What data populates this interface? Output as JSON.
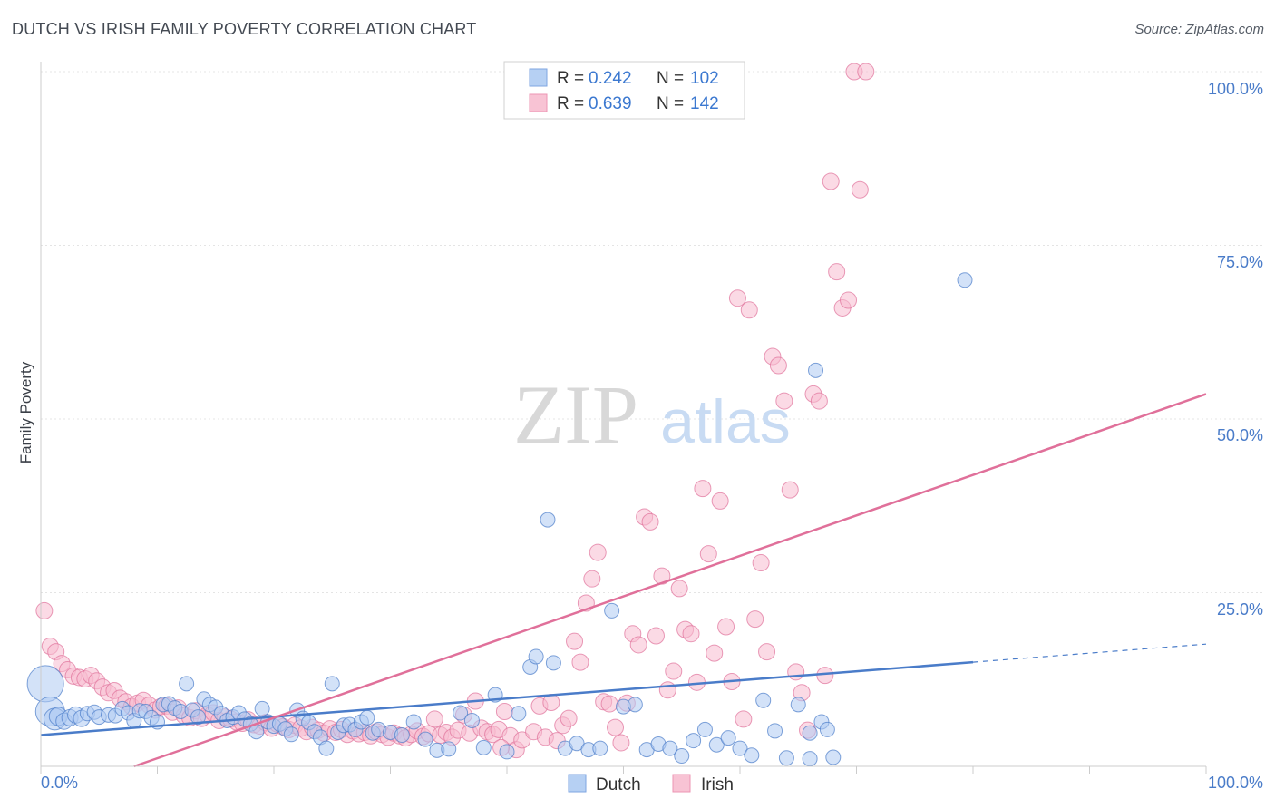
{
  "header": {
    "title": "DUTCH VS IRISH FAMILY POVERTY CORRELATION CHART",
    "source": "Source: ZipAtlas.com"
  },
  "watermark": {
    "zip": "ZIP",
    "atlas": "atlas"
  },
  "legend": {
    "items": [
      {
        "r_label": "R =",
        "r_value": "0.242",
        "n_label": "N =",
        "n_value": "102",
        "color": "#8fb4ee"
      },
      {
        "r_label": "R =",
        "r_value": "0.639",
        "n_label": "N =",
        "n_value": "142",
        "color": "#f5a3bf"
      }
    ]
  },
  "bottom_legend": {
    "dutch": "Dutch",
    "irish": "Irish"
  },
  "chart_data": {
    "type": "scatter",
    "title": "DUTCH VS IRISH FAMILY POVERTY CORRELATION CHART",
    "xlabel": "",
    "ylabel": "Family Poverty",
    "xlim": [
      0,
      100
    ],
    "ylim": [
      0,
      100
    ],
    "x_tick_labels": [
      "0.0%",
      "100.0%"
    ],
    "y_tick_labels": [
      "100.0%",
      "75.0%",
      "50.0%",
      "25.0%"
    ],
    "y_ticks": [
      100,
      75,
      50,
      25
    ],
    "grid": true,
    "colors": {
      "dutch": "#4a7cc9",
      "irish": "#e0709a",
      "dutch_fill": "#aecaf2",
      "irish_fill": "#f7bcd0"
    },
    "series": [
      {
        "name": "Dutch",
        "r": 0.242,
        "n": 102,
        "trend": {
          "x0": 0,
          "y0": 4.5,
          "x1": 80,
          "y1": 15.0,
          "dashed_to": 100,
          "dashed_y": 17.6
        },
        "points": [
          [
            0.4,
            11.9,
            20
          ],
          [
            0.8,
            7.9,
            16
          ],
          [
            1.2,
            6.8,
            12
          ],
          [
            1.5,
            7.2,
            10
          ],
          [
            2.0,
            6.5,
            9
          ],
          [
            2.5,
            7.0,
            9
          ],
          [
            3.0,
            7.4,
            9
          ],
          [
            3.5,
            6.9,
            9
          ],
          [
            4.0,
            7.6,
            8
          ],
          [
            4.6,
            7.8,
            8
          ],
          [
            5.0,
            7.1,
            8
          ],
          [
            5.8,
            7.4,
            8
          ],
          [
            6.4,
            7.3,
            8
          ],
          [
            7.0,
            8.3,
            8
          ],
          [
            7.5,
            7.7,
            8
          ],
          [
            8.0,
            6.6,
            8
          ],
          [
            8.5,
            8.0,
            8
          ],
          [
            9.0,
            7.9,
            8
          ],
          [
            9.5,
            7.0,
            8
          ],
          [
            10.0,
            6.4,
            8
          ],
          [
            10.5,
            8.9,
            8
          ],
          [
            11.0,
            9.0,
            8
          ],
          [
            11.5,
            8.4,
            8
          ],
          [
            12.0,
            7.9,
            8
          ],
          [
            12.5,
            11.9,
            8
          ],
          [
            13.0,
            8.1,
            8
          ],
          [
            13.5,
            7.1,
            8
          ],
          [
            14.0,
            9.7,
            8
          ],
          [
            14.5,
            8.9,
            8
          ],
          [
            15.0,
            8.5,
            8
          ],
          [
            15.5,
            7.6,
            8
          ],
          [
            16.0,
            6.6,
            8
          ],
          [
            16.5,
            7.1,
            8
          ],
          [
            17.0,
            7.7,
            8
          ],
          [
            17.5,
            6.8,
            8
          ],
          [
            18.0,
            6.1,
            8
          ],
          [
            18.5,
            5.0,
            8
          ],
          [
            19.0,
            8.3,
            8
          ],
          [
            19.5,
            6.4,
            8
          ],
          [
            20.0,
            5.8,
            8
          ],
          [
            20.5,
            6.1,
            8
          ],
          [
            21.0,
            5.4,
            8
          ],
          [
            21.5,
            4.6,
            8
          ],
          [
            22.0,
            8.1,
            8
          ],
          [
            22.5,
            6.9,
            8
          ],
          [
            23.0,
            6.3,
            8
          ],
          [
            23.5,
            5.0,
            8
          ],
          [
            24.0,
            4.2,
            8
          ],
          [
            24.5,
            2.6,
            8
          ],
          [
            25.0,
            11.9,
            8
          ],
          [
            25.5,
            4.9,
            8
          ],
          [
            26.0,
            5.9,
            8
          ],
          [
            26.5,
            6.0,
            8
          ],
          [
            27.0,
            5.3,
            8
          ],
          [
            27.5,
            6.4,
            8
          ],
          [
            28.0,
            7.0,
            8
          ],
          [
            28.5,
            4.8,
            8
          ],
          [
            29.0,
            5.3,
            8
          ],
          [
            30.0,
            4.9,
            8
          ],
          [
            31.0,
            4.5,
            8
          ],
          [
            32.0,
            6.4,
            8
          ],
          [
            33.0,
            3.9,
            8
          ],
          [
            34.0,
            2.3,
            8
          ],
          [
            35.0,
            2.5,
            8
          ],
          [
            36.0,
            7.7,
            8
          ],
          [
            37.0,
            6.6,
            8
          ],
          [
            38.0,
            2.7,
            8
          ],
          [
            39.0,
            10.3,
            8
          ],
          [
            40.0,
            2.1,
            8
          ],
          [
            41.0,
            7.6,
            8
          ],
          [
            42.0,
            14.3,
            8
          ],
          [
            42.5,
            15.8,
            8
          ],
          [
            43.5,
            35.5,
            8
          ],
          [
            44.0,
            14.9,
            8
          ],
          [
            45.0,
            2.6,
            8
          ],
          [
            46.0,
            3.3,
            8
          ],
          [
            47.0,
            2.4,
            8
          ],
          [
            48.0,
            2.6,
            8
          ],
          [
            49.0,
            22.4,
            8
          ],
          [
            50.0,
            8.6,
            8
          ],
          [
            51.0,
            8.9,
            8
          ],
          [
            52.0,
            2.4,
            8
          ],
          [
            53.0,
            3.2,
            8
          ],
          [
            54.0,
            2.6,
            8
          ],
          [
            55.0,
            1.5,
            8
          ],
          [
            56.0,
            3.7,
            8
          ],
          [
            57.0,
            5.3,
            8
          ],
          [
            58.0,
            3.1,
            8
          ],
          [
            59.0,
            4.1,
            8
          ],
          [
            60.0,
            2.6,
            8
          ],
          [
            61.0,
            1.6,
            8
          ],
          [
            62.0,
            9.5,
            8
          ],
          [
            63.0,
            5.1,
            8
          ],
          [
            64.0,
            1.2,
            8
          ],
          [
            65.0,
            8.9,
            8
          ],
          [
            66.0,
            1.1,
            8
          ],
          [
            66.5,
            57.0,
            8
          ],
          [
            67.0,
            6.4,
            8
          ],
          [
            67.5,
            5.3,
            8
          ],
          [
            68.0,
            1.3,
            8
          ],
          [
            79.3,
            70.0,
            8
          ],
          [
            66.0,
            4.8,
            8
          ]
        ]
      },
      {
        "name": "Irish",
        "r": 0.639,
        "n": 142,
        "trend": {
          "x0": 8,
          "y0": 0,
          "x1": 100,
          "y1": 53.6
        },
        "points": [
          [
            0.3,
            22.4,
            9
          ],
          [
            0.8,
            17.3,
            9
          ],
          [
            1.3,
            16.5,
            9
          ],
          [
            1.8,
            14.8,
            9
          ],
          [
            2.3,
            13.9,
            9
          ],
          [
            2.8,
            13.0,
            9
          ],
          [
            3.3,
            12.8,
            9
          ],
          [
            3.8,
            12.6,
            9
          ],
          [
            4.3,
            13.1,
            9
          ],
          [
            4.8,
            12.3,
            9
          ],
          [
            5.3,
            11.4,
            9
          ],
          [
            5.8,
            10.6,
            9
          ],
          [
            6.3,
            10.9,
            9
          ],
          [
            6.8,
            9.8,
            9
          ],
          [
            7.3,
            9.3,
            9
          ],
          [
            7.8,
            8.6,
            9
          ],
          [
            8.3,
            9.1,
            9
          ],
          [
            8.8,
            9.5,
            9
          ],
          [
            9.3,
            8.8,
            9
          ],
          [
            9.8,
            8.1,
            9
          ],
          [
            10.3,
            8.6,
            9
          ],
          [
            10.8,
            8.7,
            9
          ],
          [
            11.3,
            7.8,
            9
          ],
          [
            11.8,
            8.4,
            9
          ],
          [
            12.3,
            7.3,
            9
          ],
          [
            12.8,
            7.0,
            9
          ],
          [
            13.3,
            8.0,
            9
          ],
          [
            13.8,
            6.9,
            9
          ],
          [
            14.3,
            7.4,
            9
          ],
          [
            14.8,
            7.7,
            9
          ],
          [
            15.3,
            6.6,
            9
          ],
          [
            15.8,
            7.1,
            9
          ],
          [
            16.3,
            6.8,
            9
          ],
          [
            16.8,
            6.4,
            9
          ],
          [
            17.3,
            6.2,
            9
          ],
          [
            17.8,
            6.7,
            9
          ],
          [
            18.3,
            6.0,
            9
          ],
          [
            18.8,
            5.8,
            9
          ],
          [
            19.3,
            6.3,
            9
          ],
          [
            19.8,
            5.5,
            9
          ],
          [
            20.3,
            6.1,
            9
          ],
          [
            20.8,
            5.7,
            9
          ],
          [
            21.3,
            5.3,
            9
          ],
          [
            21.8,
            5.9,
            9
          ],
          [
            22.3,
            5.5,
            9
          ],
          [
            22.8,
            5.0,
            9
          ],
          [
            23.3,
            5.6,
            9
          ],
          [
            23.8,
            5.2,
            9
          ],
          [
            24.3,
            4.8,
            9
          ],
          [
            24.8,
            5.4,
            9
          ],
          [
            25.3,
            4.9,
            9
          ],
          [
            25.8,
            5.3,
            9
          ],
          [
            26.3,
            4.6,
            9
          ],
          [
            26.8,
            5.1,
            9
          ],
          [
            27.3,
            4.7,
            9
          ],
          [
            27.8,
            4.9,
            9
          ],
          [
            28.3,
            4.4,
            9
          ],
          [
            28.8,
            5.0,
            9
          ],
          [
            29.3,
            4.6,
            9
          ],
          [
            29.8,
            4.2,
            9
          ],
          [
            30.3,
            4.8,
            9
          ],
          [
            30.8,
            4.4,
            9
          ],
          [
            31.3,
            4.1,
            9
          ],
          [
            31.8,
            4.6,
            9
          ],
          [
            32.3,
            5.1,
            9
          ],
          [
            32.8,
            4.3,
            9
          ],
          [
            33.3,
            4.7,
            9
          ],
          [
            33.8,
            6.8,
            9
          ],
          [
            34.3,
            4.5,
            9
          ],
          [
            34.8,
            4.9,
            9
          ],
          [
            35.3,
            4.2,
            9
          ],
          [
            35.8,
            5.2,
            9
          ],
          [
            36.3,
            7.4,
            9
          ],
          [
            36.8,
            4.8,
            9
          ],
          [
            37.3,
            9.4,
            9
          ],
          [
            37.8,
            5.5,
            9
          ],
          [
            38.3,
            5.0,
            9
          ],
          [
            38.8,
            4.6,
            9
          ],
          [
            39.3,
            5.3,
            9
          ],
          [
            39.8,
            7.9,
            9
          ],
          [
            40.3,
            4.4,
            9
          ],
          [
            40.8,
            2.4,
            9
          ],
          [
            41.3,
            3.8,
            9
          ],
          [
            42.3,
            5.0,
            9
          ],
          [
            42.8,
            8.7,
            9
          ],
          [
            43.3,
            4.2,
            9
          ],
          [
            43.8,
            9.2,
            9
          ],
          [
            44.3,
            3.7,
            9
          ],
          [
            44.8,
            5.9,
            9
          ],
          [
            45.3,
            6.9,
            9
          ],
          [
            45.8,
            18.0,
            9
          ],
          [
            46.3,
            15.0,
            9
          ],
          [
            46.8,
            23.5,
            9
          ],
          [
            47.3,
            27.0,
            9
          ],
          [
            47.8,
            30.8,
            9
          ],
          [
            48.3,
            9.3,
            9
          ],
          [
            48.8,
            9.0,
            9
          ],
          [
            49.3,
            5.6,
            9
          ],
          [
            49.8,
            3.4,
            9
          ],
          [
            50.3,
            9.1,
            9
          ],
          [
            50.8,
            19.1,
            9
          ],
          [
            51.3,
            17.5,
            9
          ],
          [
            51.8,
            35.9,
            9
          ],
          [
            52.3,
            35.2,
            9
          ],
          [
            52.8,
            18.8,
            9
          ],
          [
            53.3,
            27.4,
            9
          ],
          [
            53.8,
            11.0,
            9
          ],
          [
            54.3,
            13.7,
            9
          ],
          [
            54.8,
            25.6,
            9
          ],
          [
            55.3,
            19.7,
            9
          ],
          [
            55.8,
            19.1,
            9
          ],
          [
            56.3,
            12.1,
            9
          ],
          [
            56.8,
            40.0,
            9
          ],
          [
            57.3,
            30.6,
            9
          ],
          [
            57.8,
            16.3,
            9
          ],
          [
            58.3,
            38.2,
            9
          ],
          [
            58.8,
            20.1,
            9
          ],
          [
            59.3,
            12.2,
            9
          ],
          [
            59.8,
            67.4,
            9
          ],
          [
            60.3,
            6.8,
            9
          ],
          [
            60.8,
            65.7,
            9
          ],
          [
            61.3,
            21.2,
            9
          ],
          [
            61.8,
            29.3,
            9
          ],
          [
            62.3,
            16.5,
            9
          ],
          [
            62.8,
            59.0,
            9
          ],
          [
            63.3,
            57.7,
            9
          ],
          [
            63.8,
            52.6,
            9
          ],
          [
            64.3,
            39.8,
            9
          ],
          [
            64.8,
            13.6,
            9
          ],
          [
            65.3,
            10.6,
            9
          ],
          [
            65.8,
            5.2,
            9
          ],
          [
            66.3,
            53.6,
            9
          ],
          [
            66.8,
            52.6,
            9
          ],
          [
            67.3,
            13.1,
            9
          ],
          [
            67.8,
            84.2,
            9
          ],
          [
            68.3,
            71.2,
            9
          ],
          [
            68.8,
            66.0,
            9
          ],
          [
            69.3,
            67.1,
            9
          ],
          [
            69.8,
            100.0,
            9
          ],
          [
            70.3,
            83.0,
            9
          ],
          [
            70.8,
            100.0,
            9
          ],
          [
            39.5,
            2.7,
            9
          ]
        ]
      }
    ]
  }
}
